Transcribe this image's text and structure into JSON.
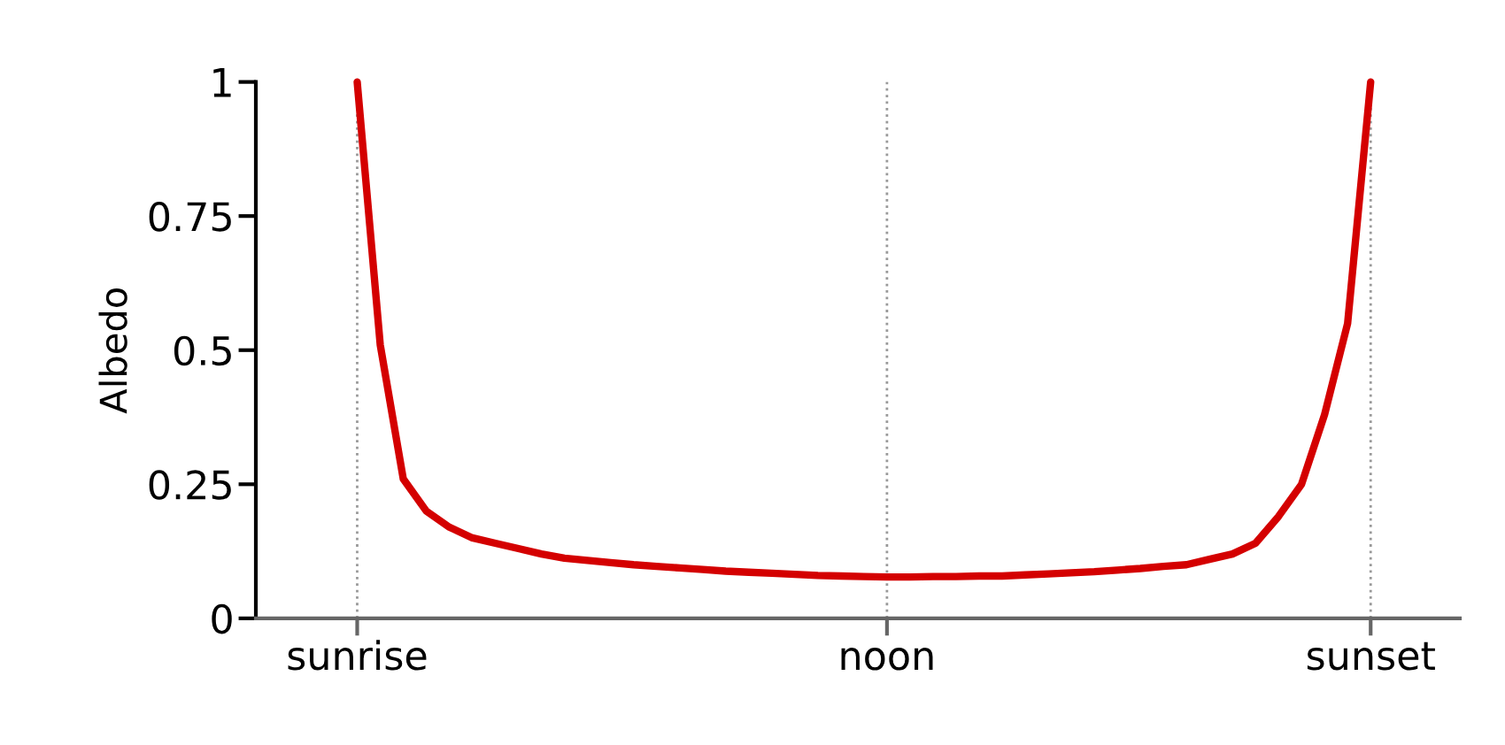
{
  "chart_data": {
    "type": "line",
    "ylabel": "Albedo",
    "categories": [
      "sunrise",
      null,
      null,
      null,
      null,
      null,
      null,
      null,
      null,
      null,
      null,
      null,
      null,
      null,
      null,
      null,
      null,
      null,
      null,
      null,
      null,
      null,
      null,
      "noon",
      null,
      null,
      null,
      null,
      null,
      null,
      null,
      null,
      null,
      null,
      null,
      null,
      null,
      null,
      null,
      null,
      null,
      null,
      null,
      null,
      "sunset"
    ],
    "series": [
      {
        "color": "#d40000",
        "values": [
          1.0,
          0.51,
          0.26,
          0.2,
          0.17,
          0.15,
          0.14,
          0.13,
          0.12,
          0.112,
          0.108,
          0.104,
          0.1,
          0.097,
          0.094,
          0.091,
          0.088,
          0.086,
          0.084,
          0.082,
          0.08,
          0.079,
          0.078,
          0.077,
          0.077,
          0.078,
          0.078,
          0.079,
          0.079,
          0.081,
          0.083,
          0.085,
          0.087,
          0.09,
          0.093,
          0.097,
          0.1,
          0.11,
          0.12,
          0.14,
          0.19,
          0.25,
          0.38,
          0.55,
          1.0
        ]
      }
    ],
    "ylim": [
      0,
      1
    ],
    "yticks": [
      0,
      0.25,
      0.5,
      0.75,
      1
    ],
    "ref_lines": [
      {
        "axis": "x",
        "value": "sunrise",
        "color": "#999999",
        "line_style": "dotted"
      },
      {
        "axis": "x",
        "value": "noon",
        "color": "#999999",
        "line_style": "dotted"
      },
      {
        "axis": "x",
        "value": "sunset",
        "color": "#999999",
        "line_style": "dotted"
      }
    ],
    "grid": false,
    "legend": false,
    "marker": "none",
    "line_style": "solid"
  }
}
